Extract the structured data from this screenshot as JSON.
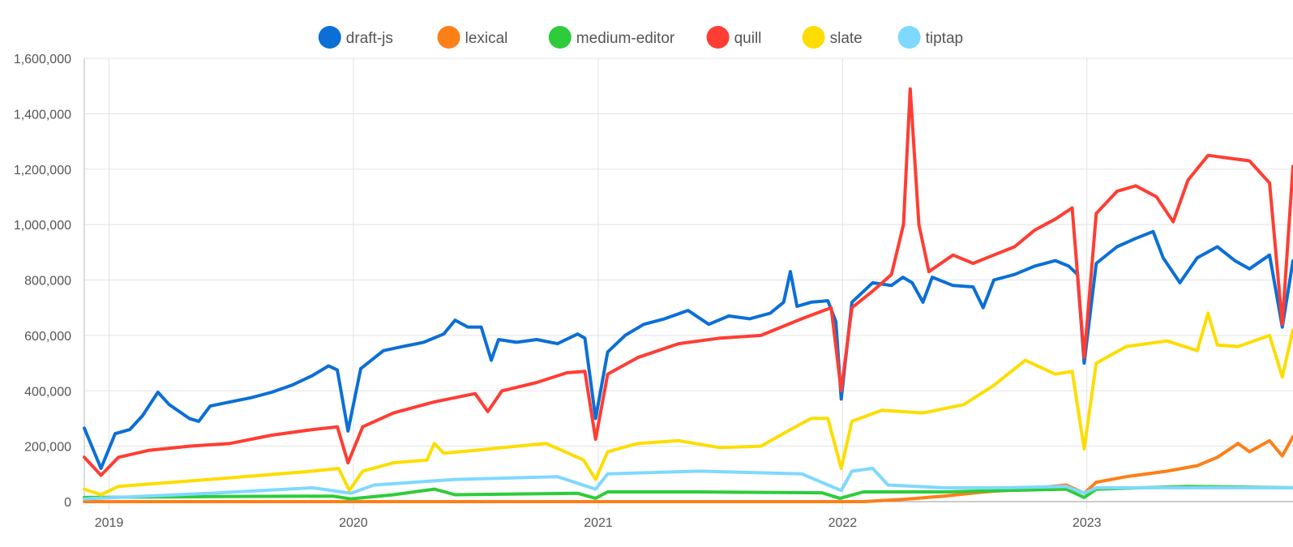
{
  "chart_data": {
    "type": "line",
    "title": "",
    "xlabel": "",
    "ylabel": "",
    "x_range": [
      "2018-11-25",
      "2023-11-05"
    ],
    "ylim": [
      0,
      1600000
    ],
    "y_ticks": [
      0,
      200000,
      400000,
      600000,
      800000,
      1000000,
      1200000,
      1400000,
      1600000
    ],
    "y_tick_labels": [
      "0",
      "200,000",
      "400,000",
      "600,000",
      "800,000",
      "1,000,000",
      "1,200,000",
      "1,400,000",
      "1,600,000"
    ],
    "x_ticks": [
      "2019-01-01",
      "2020-01-01",
      "2021-01-01",
      "2022-01-01",
      "2023-01-01"
    ],
    "x_tick_labels": [
      "2019",
      "2020",
      "2021",
      "2022",
      "2023"
    ],
    "grid": true,
    "legend": {
      "placement": "top-center"
    },
    "series": [
      {
        "name": "draft-js",
        "color": "#0b6fd6",
        "points": [
          [
            "2018-11-25",
            265000
          ],
          [
            "2018-12-20",
            120000
          ],
          [
            "2019-01-10",
            245000
          ],
          [
            "2019-02-01",
            260000
          ],
          [
            "2019-02-20",
            310000
          ],
          [
            "2019-03-15",
            395000
          ],
          [
            "2019-04-01",
            350000
          ],
          [
            "2019-05-01",
            300000
          ],
          [
            "2019-05-15",
            290000
          ],
          [
            "2019-06-01",
            345000
          ],
          [
            "2019-07-01",
            360000
          ],
          [
            "2019-08-01",
            375000
          ],
          [
            "2019-09-01",
            395000
          ],
          [
            "2019-10-01",
            420000
          ],
          [
            "2019-11-01",
            455000
          ],
          [
            "2019-11-25",
            490000
          ],
          [
            "2019-12-08",
            475000
          ],
          [
            "2019-12-24",
            255000
          ],
          [
            "2020-01-12",
            480000
          ],
          [
            "2020-02-15",
            545000
          ],
          [
            "2020-03-15",
            560000
          ],
          [
            "2020-04-15",
            575000
          ],
          [
            "2020-05-15",
            605000
          ],
          [
            "2020-06-01",
            655000
          ],
          [
            "2020-06-20",
            630000
          ],
          [
            "2020-07-10",
            630000
          ],
          [
            "2020-07-25",
            510000
          ],
          [
            "2020-08-05",
            585000
          ],
          [
            "2020-09-01",
            575000
          ],
          [
            "2020-10-01",
            585000
          ],
          [
            "2020-11-01",
            570000
          ],
          [
            "2020-12-01",
            605000
          ],
          [
            "2020-12-12",
            590000
          ],
          [
            "2020-12-28",
            300000
          ],
          [
            "2021-01-15",
            540000
          ],
          [
            "2021-02-10",
            600000
          ],
          [
            "2021-03-10",
            640000
          ],
          [
            "2021-04-10",
            660000
          ],
          [
            "2021-05-15",
            690000
          ],
          [
            "2021-06-15",
            640000
          ],
          [
            "2021-07-15",
            670000
          ],
          [
            "2021-08-15",
            660000
          ],
          [
            "2021-09-15",
            680000
          ],
          [
            "2021-10-05",
            720000
          ],
          [
            "2021-10-15",
            830000
          ],
          [
            "2021-10-25",
            705000
          ],
          [
            "2021-11-15",
            720000
          ],
          [
            "2021-12-10",
            725000
          ],
          [
            "2021-12-22",
            650000
          ],
          [
            "2021-12-30",
            370000
          ],
          [
            "2022-01-15",
            720000
          ],
          [
            "2022-02-15",
            790000
          ],
          [
            "2022-03-15",
            780000
          ],
          [
            "2022-04-01",
            810000
          ],
          [
            "2022-04-15",
            790000
          ],
          [
            "2022-05-01",
            720000
          ],
          [
            "2022-05-15",
            810000
          ],
          [
            "2022-06-15",
            780000
          ],
          [
            "2022-07-15",
            775000
          ],
          [
            "2022-07-30",
            700000
          ],
          [
            "2022-08-15",
            800000
          ],
          [
            "2022-09-15",
            820000
          ],
          [
            "2022-10-15",
            850000
          ],
          [
            "2022-11-15",
            870000
          ],
          [
            "2022-12-05",
            850000
          ],
          [
            "2022-12-18",
            820000
          ],
          [
            "2022-12-28",
            500000
          ],
          [
            "2023-01-15",
            860000
          ],
          [
            "2023-02-15",
            920000
          ],
          [
            "2023-03-15",
            950000
          ],
          [
            "2023-04-10",
            975000
          ],
          [
            "2023-04-25",
            880000
          ],
          [
            "2023-05-20",
            790000
          ],
          [
            "2023-06-15",
            880000
          ],
          [
            "2023-07-15",
            920000
          ],
          [
            "2023-08-10",
            870000
          ],
          [
            "2023-09-01",
            840000
          ],
          [
            "2023-10-01",
            890000
          ],
          [
            "2023-10-20",
            630000
          ],
          [
            "2023-11-05",
            870000
          ]
        ]
      },
      {
        "name": "lexical",
        "color": "#fd7f18",
        "points": [
          [
            "2018-11-25",
            0
          ],
          [
            "2022-02-01",
            0
          ],
          [
            "2022-04-01",
            8000
          ],
          [
            "2022-06-01",
            20000
          ],
          [
            "2022-08-01",
            35000
          ],
          [
            "2022-10-01",
            45000
          ],
          [
            "2022-12-01",
            60000
          ],
          [
            "2022-12-28",
            30000
          ],
          [
            "2023-01-15",
            70000
          ],
          [
            "2023-03-01",
            90000
          ],
          [
            "2023-05-01",
            110000
          ],
          [
            "2023-06-15",
            130000
          ],
          [
            "2023-07-15",
            160000
          ],
          [
            "2023-08-15",
            210000
          ],
          [
            "2023-09-01",
            180000
          ],
          [
            "2023-10-01",
            220000
          ],
          [
            "2023-10-20",
            165000
          ],
          [
            "2023-11-05",
            235000
          ]
        ]
      },
      {
        "name": "medium-editor",
        "color": "#2ecc3a",
        "points": [
          [
            "2018-11-25",
            15000
          ],
          [
            "2019-06-01",
            18000
          ],
          [
            "2019-12-01",
            20000
          ],
          [
            "2019-12-28",
            10000
          ],
          [
            "2020-03-01",
            25000
          ],
          [
            "2020-05-01",
            45000
          ],
          [
            "2020-06-01",
            25000
          ],
          [
            "2020-12-01",
            30000
          ],
          [
            "2020-12-28",
            12000
          ],
          [
            "2021-01-15",
            35000
          ],
          [
            "2021-06-01",
            35000
          ],
          [
            "2021-12-01",
            32000
          ],
          [
            "2021-12-28",
            12000
          ],
          [
            "2022-02-01",
            35000
          ],
          [
            "2022-06-01",
            35000
          ],
          [
            "2022-12-01",
            45000
          ],
          [
            "2022-12-28",
            15000
          ],
          [
            "2023-01-15",
            45000
          ],
          [
            "2023-06-01",
            55000
          ],
          [
            "2023-11-05",
            50000
          ]
        ]
      },
      {
        "name": "quill",
        "color": "#ff3d33",
        "points": [
          [
            "2018-11-25",
            160000
          ],
          [
            "2018-12-20",
            95000
          ],
          [
            "2019-01-15",
            160000
          ],
          [
            "2019-03-01",
            185000
          ],
          [
            "2019-05-01",
            200000
          ],
          [
            "2019-07-01",
            210000
          ],
          [
            "2019-09-01",
            240000
          ],
          [
            "2019-11-01",
            260000
          ],
          [
            "2019-12-08",
            270000
          ],
          [
            "2019-12-24",
            140000
          ],
          [
            "2020-01-15",
            270000
          ],
          [
            "2020-03-01",
            320000
          ],
          [
            "2020-05-01",
            360000
          ],
          [
            "2020-07-01",
            390000
          ],
          [
            "2020-07-20",
            325000
          ],
          [
            "2020-08-10",
            400000
          ],
          [
            "2020-10-01",
            430000
          ],
          [
            "2020-11-15",
            465000
          ],
          [
            "2020-12-12",
            470000
          ],
          [
            "2020-12-28",
            225000
          ],
          [
            "2021-01-15",
            460000
          ],
          [
            "2021-03-01",
            520000
          ],
          [
            "2021-05-01",
            570000
          ],
          [
            "2021-07-01",
            590000
          ],
          [
            "2021-09-01",
            600000
          ],
          [
            "2021-11-01",
            660000
          ],
          [
            "2021-12-15",
            700000
          ],
          [
            "2021-12-30",
            400000
          ],
          [
            "2022-01-15",
            700000
          ],
          [
            "2022-02-15",
            760000
          ],
          [
            "2022-03-15",
            820000
          ],
          [
            "2022-04-02",
            1000000
          ],
          [
            "2022-04-12",
            1490000
          ],
          [
            "2022-04-25",
            1000000
          ],
          [
            "2022-05-10",
            830000
          ],
          [
            "2022-06-15",
            890000
          ],
          [
            "2022-07-15",
            860000
          ],
          [
            "2022-08-15",
            890000
          ],
          [
            "2022-09-15",
            920000
          ],
          [
            "2022-10-15",
            980000
          ],
          [
            "2022-11-15",
            1020000
          ],
          [
            "2022-12-10",
            1060000
          ],
          [
            "2022-12-28",
            520000
          ],
          [
            "2023-01-15",
            1040000
          ],
          [
            "2023-02-15",
            1120000
          ],
          [
            "2023-03-15",
            1140000
          ],
          [
            "2023-04-15",
            1100000
          ],
          [
            "2023-05-10",
            1010000
          ],
          [
            "2023-06-01",
            1160000
          ],
          [
            "2023-07-01",
            1250000
          ],
          [
            "2023-08-01",
            1240000
          ],
          [
            "2023-09-01",
            1230000
          ],
          [
            "2023-10-01",
            1150000
          ],
          [
            "2023-10-20",
            640000
          ],
          [
            "2023-11-05",
            1210000
          ]
        ]
      },
      {
        "name": "slate",
        "color": "#fddd00",
        "points": [
          [
            "2018-11-25",
            45000
          ],
          [
            "2018-12-20",
            25000
          ],
          [
            "2019-01-15",
            55000
          ],
          [
            "2019-06-01",
            80000
          ],
          [
            "2019-11-01",
            110000
          ],
          [
            "2019-12-10",
            120000
          ],
          [
            "2019-12-26",
            40000
          ],
          [
            "2020-01-15",
            110000
          ],
          [
            "2020-03-01",
            140000
          ],
          [
            "2020-04-20",
            150000
          ],
          [
            "2020-05-01",
            210000
          ],
          [
            "2020-05-15",
            175000
          ],
          [
            "2020-07-01",
            185000
          ],
          [
            "2020-09-01",
            200000
          ],
          [
            "2020-10-15",
            210000
          ],
          [
            "2020-12-10",
            150000
          ],
          [
            "2020-12-28",
            80000
          ],
          [
            "2021-01-15",
            180000
          ],
          [
            "2021-03-01",
            210000
          ],
          [
            "2021-05-01",
            220000
          ],
          [
            "2021-07-01",
            195000
          ],
          [
            "2021-09-01",
            200000
          ],
          [
            "2021-10-15",
            260000
          ],
          [
            "2021-11-15",
            300000
          ],
          [
            "2021-12-10",
            300000
          ],
          [
            "2021-12-30",
            120000
          ],
          [
            "2022-01-15",
            290000
          ],
          [
            "2022-03-01",
            330000
          ],
          [
            "2022-05-01",
            320000
          ],
          [
            "2022-07-01",
            350000
          ],
          [
            "2022-08-15",
            420000
          ],
          [
            "2022-10-01",
            510000
          ],
          [
            "2022-11-15",
            460000
          ],
          [
            "2022-12-10",
            470000
          ],
          [
            "2022-12-28",
            190000
          ],
          [
            "2023-01-15",
            500000
          ],
          [
            "2023-03-01",
            560000
          ],
          [
            "2023-05-01",
            580000
          ],
          [
            "2023-06-15",
            545000
          ],
          [
            "2023-07-01",
            680000
          ],
          [
            "2023-07-15",
            565000
          ],
          [
            "2023-08-15",
            560000
          ],
          [
            "2023-10-01",
            600000
          ],
          [
            "2023-10-20",
            450000
          ],
          [
            "2023-11-05",
            620000
          ]
        ]
      },
      {
        "name": "tiptap",
        "color": "#7fd8ff",
        "points": [
          [
            "2018-11-25",
            10000
          ],
          [
            "2019-06-01",
            30000
          ],
          [
            "2019-11-01",
            50000
          ],
          [
            "2019-12-28",
            30000
          ],
          [
            "2020-02-01",
            60000
          ],
          [
            "2020-06-01",
            80000
          ],
          [
            "2020-11-01",
            90000
          ],
          [
            "2020-12-28",
            45000
          ],
          [
            "2021-01-15",
            100000
          ],
          [
            "2021-06-01",
            110000
          ],
          [
            "2021-11-01",
            100000
          ],
          [
            "2021-12-30",
            40000
          ],
          [
            "2022-01-15",
            110000
          ],
          [
            "2022-02-15",
            120000
          ],
          [
            "2022-03-10",
            60000
          ],
          [
            "2022-06-01",
            50000
          ],
          [
            "2022-09-01",
            50000
          ],
          [
            "2022-12-01",
            55000
          ],
          [
            "2022-12-28",
            30000
          ],
          [
            "2023-01-15",
            50000
          ],
          [
            "2023-06-01",
            50000
          ],
          [
            "2023-11-05",
            50000
          ]
        ]
      }
    ]
  }
}
